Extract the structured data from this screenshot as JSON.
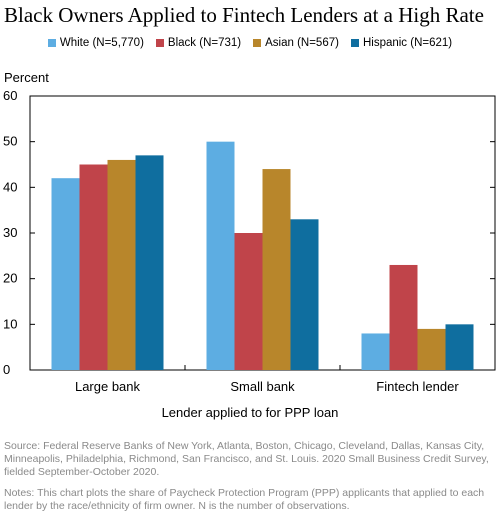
{
  "chart_data": {
    "type": "bar",
    "title": "Black Owners Applied to Fintech Lenders at a High Rate",
    "ylabel": "Percent",
    "xlabel": "Lender applied to for PPP loan",
    "categories": [
      "Large bank",
      "Small bank",
      "Fintech lender"
    ],
    "series": [
      {
        "name": "White (N=5,770)",
        "color": "#5DADE2",
        "values": [
          42,
          50,
          8
        ]
      },
      {
        "name": "Black (N=731)",
        "color": "#C0444A",
        "values": [
          45,
          30,
          23
        ]
      },
      {
        "name": "Asian (N=567)",
        "color": "#B8862B",
        "values": [
          46,
          44,
          9
        ]
      },
      {
        "name": "Hispanic (N=621)",
        "color": "#0F6E9F",
        "values": [
          47,
          33,
          10
        ]
      }
    ],
    "ylim": [
      0,
      60
    ],
    "yticks": [
      "0",
      "10",
      "20",
      "30",
      "40",
      "50",
      "60"
    ],
    "grid": false,
    "legend_position": "top"
  },
  "legend_labels": [
    "White (N=5,770)",
    "Black (N=731)",
    "Asian (N=567)",
    "Hispanic (N=621)"
  ],
  "source": "Source: Federal Reserve Banks of New York, Atlanta, Boston, Chicago, Cleveland, Dallas, Kansas City, Minneapolis, Philadelphia, Richmond, San Francisco, and St. Louis. 2020 Small Business Credit Survey, fielded September-October 2020.",
  "notes": "Notes: This chart plots the share of Paycheck Protection Program (PPP) applicants that applied to each lender by the race/ethnicity of firm owner. N is the number of observations."
}
